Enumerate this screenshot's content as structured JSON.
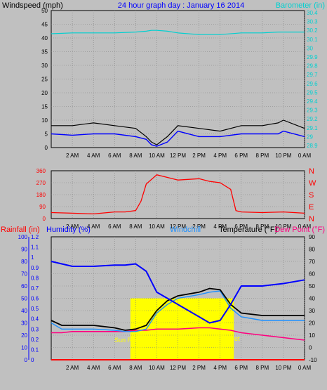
{
  "header": {
    "wind_label": "Windspeed (mph)",
    "title": "24 hour graph day : January 16 2014",
    "baro_label": "Barometer (in)"
  },
  "lower_header": {
    "rainfall_label": "Rainfall (in)",
    "humidity_label": "Humidity (%)",
    "windchill_label": "Windchill",
    "temperature_label": "Temperature (°F)",
    "dewpoint_label": "Dew Point (°F)"
  },
  "sun_labels": {
    "rise": "Sun Rise",
    "set": "Set"
  },
  "colors": {
    "windspeed": "#0000ff",
    "gust": "#000000",
    "gust_grey": "#808080",
    "barometer": "#00d0d0",
    "direction": "#ff0000",
    "humidity": "#0000ff",
    "windchill": "#1e90ff",
    "temperature": "#000000",
    "dewpoint": "#ff0080",
    "rainfall": "#ff0000",
    "daylight": "#ffff00",
    "left_axis": "#0000ff",
    "compass": "#ff0000"
  },
  "chart_data": [
    {
      "type": "line",
      "id": "wind-barometer",
      "title": "24 hour graph day : January 16 2014",
      "ylabel": "Windspeed (mph)",
      "y2label": "Barometer (in)",
      "ylim": [
        0,
        50
      ],
      "y_ticks": [
        0,
        5,
        10,
        15,
        20,
        25,
        30,
        35,
        40,
        45,
        50
      ],
      "y2lim": [
        29.8,
        30.4
      ],
      "y2_ticks": [
        "30.4",
        "30.3",
        "30.2",
        "30.1",
        "30",
        "29.9",
        "29.8",
        "29.7",
        "29.6",
        "29.5",
        "29.4",
        "29.3",
        "29.2",
        "29.1",
        "29",
        "28.9"
      ],
      "x_ticks": [
        "2 AM",
        "4 AM",
        "6 AM",
        "8 AM",
        "10 AM",
        "12 PM",
        "2 PM",
        "4 PM",
        "6 PM",
        "8 PM",
        "10 PM",
        "0 AM"
      ],
      "x_hours": [
        0,
        2,
        4,
        6,
        8,
        9,
        9.5,
        10,
        11,
        12,
        14,
        16,
        18,
        20,
        21.5,
        22,
        24
      ],
      "series": [
        {
          "name": "Windspeed",
          "values": [
            5,
            4.5,
            5,
            5,
            4,
            3,
            1,
            0.5,
            2,
            6,
            4,
            4,
            5,
            5,
            5,
            6,
            4
          ]
        },
        {
          "name": "Gust",
          "values": [
            8,
            8,
            9,
            8,
            7,
            4,
            2,
            1,
            4,
            8,
            7,
            6,
            8,
            8,
            9,
            10,
            7
          ]
        },
        {
          "name": "Barometer",
          "values": [
            30.35,
            30.36,
            30.36,
            30.36,
            30.37,
            30.38,
            30.39,
            30.39,
            30.38,
            30.36,
            30.34,
            30.34,
            30.36,
            30.36,
            30.37,
            30.37,
            30.37
          ]
        }
      ]
    },
    {
      "type": "line",
      "id": "wind-direction",
      "ylim": [
        0,
        360
      ],
      "y_ticks": [
        0,
        90,
        180,
        270,
        360
      ],
      "compass": [
        "N",
        "W",
        "S",
        "E",
        "N"
      ],
      "x_ticks": [
        "2 AM",
        "4 AM",
        "6 AM",
        "8 AM",
        "10 AM",
        "12 PM",
        "2 PM",
        "4 PM",
        "6 PM",
        "8 PM",
        "10 PM",
        "0 AM"
      ],
      "x_hours": [
        0,
        2,
        4,
        6,
        7,
        8,
        8.5,
        9,
        10,
        12,
        14,
        15,
        16,
        17,
        17.5,
        18,
        20,
        22,
        24
      ],
      "series": [
        {
          "name": "Wind direction",
          "values": [
            45,
            40,
            35,
            50,
            50,
            60,
            130,
            260,
            330,
            290,
            300,
            280,
            270,
            220,
            60,
            50,
            45,
            50,
            40
          ]
        }
      ]
    },
    {
      "type": "line",
      "id": "temperature-humidity",
      "y_left_humidity_ticks": [
        0,
        10,
        20,
        30,
        40,
        50,
        60,
        70,
        80,
        90,
        100
      ],
      "y_left_rain_ticks": [
        "0",
        "0.1",
        "0.2",
        "0.3",
        "0.4",
        "0.5",
        "0.6",
        "0.7",
        "0.8",
        "0.9",
        "1",
        "1.1",
        "1.2"
      ],
      "ylim": [
        0,
        100
      ],
      "y2lim": [
        -10,
        90
      ],
      "y2_ticks": [
        -10,
        0,
        10,
        20,
        30,
        40,
        50,
        60,
        70,
        80,
        90
      ],
      "x_ticks": [
        "2 AM",
        "4 AM",
        "6 AM",
        "8 AM",
        "10 AM",
        "12 PM",
        "2 PM",
        "4 PM",
        "6 PM",
        "8 PM",
        "10 PM",
        "0 AM"
      ],
      "daylight_hours": [
        7.5,
        17.3
      ],
      "x_hours": [
        0,
        1,
        2,
        4,
        6,
        7,
        8,
        9,
        10,
        11,
        12,
        14,
        15,
        16,
        17,
        18,
        20,
        22,
        24
      ],
      "series": [
        {
          "name": "Humidity",
          "values": [
            80,
            78,
            76,
            76,
            77,
            77,
            78,
            72,
            55,
            50,
            45,
            35,
            30,
            32,
            45,
            60,
            60,
            62,
            65
          ]
        },
        {
          "name": "Temperature",
          "values": [
            22,
            18,
            18,
            18,
            16,
            14,
            15,
            18,
            30,
            38,
            42,
            45,
            48,
            47,
            35,
            28,
            26,
            26,
            26
          ]
        },
        {
          "name": "Windchill",
          "values": [
            20,
            15,
            15,
            15,
            14,
            13,
            13,
            15,
            28,
            35,
            40,
            43,
            45,
            46,
            32,
            25,
            22,
            22,
            22
          ]
        },
        {
          "name": "Dew Point",
          "values": [
            12,
            12,
            13,
            13,
            13,
            13,
            14,
            14,
            15,
            15,
            15,
            16,
            16,
            15,
            14,
            12,
            10,
            8,
            6
          ]
        },
        {
          "name": "Rainfall",
          "values": [
            0,
            0,
            0,
            0,
            0,
            0,
            0,
            0,
            0,
            0,
            0,
            0,
            0,
            0,
            0,
            0,
            0,
            0,
            0
          ]
        }
      ]
    }
  ]
}
